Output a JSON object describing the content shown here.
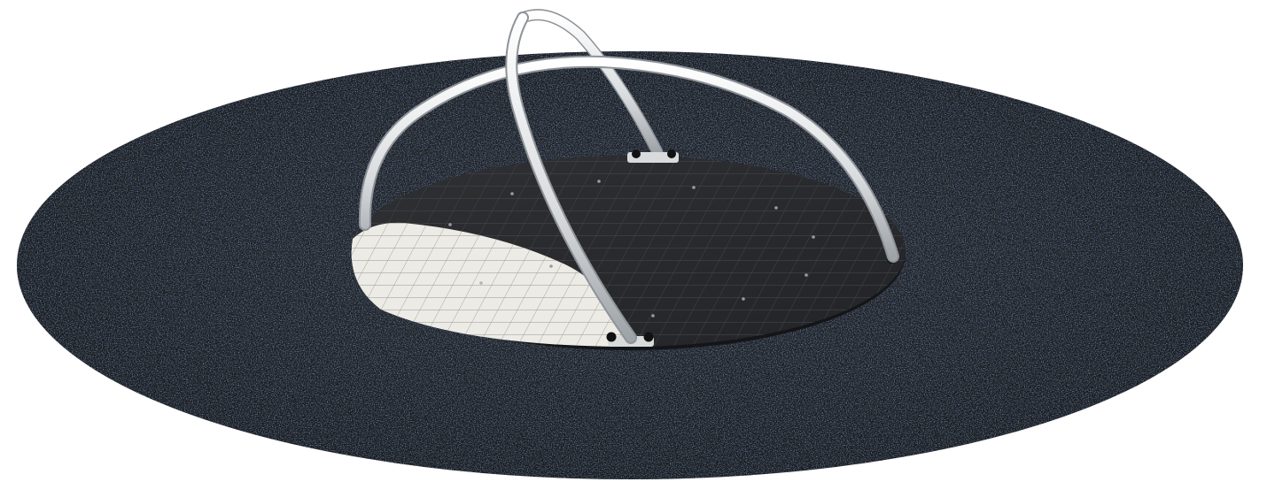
{
  "scene": {
    "subject": "playground-spinner-platform",
    "colors": {
      "background": "#ffffff",
      "surface_base": "#1c2026",
      "surface_speckle_blue": "#2e4a6e",
      "surface_speckle_brown": "#4a3e30",
      "surface_speckle_grey": "#3a3d42",
      "platform_dark": "#2a2b2e",
      "platform_light": "#ecebe6",
      "grid_line_dark": "#45464a",
      "grid_line_light": "#9c9b96",
      "arch_tube": "#e6e8ea",
      "arch_shadow": "#9ea3a8",
      "bolt": "#111111"
    }
  }
}
